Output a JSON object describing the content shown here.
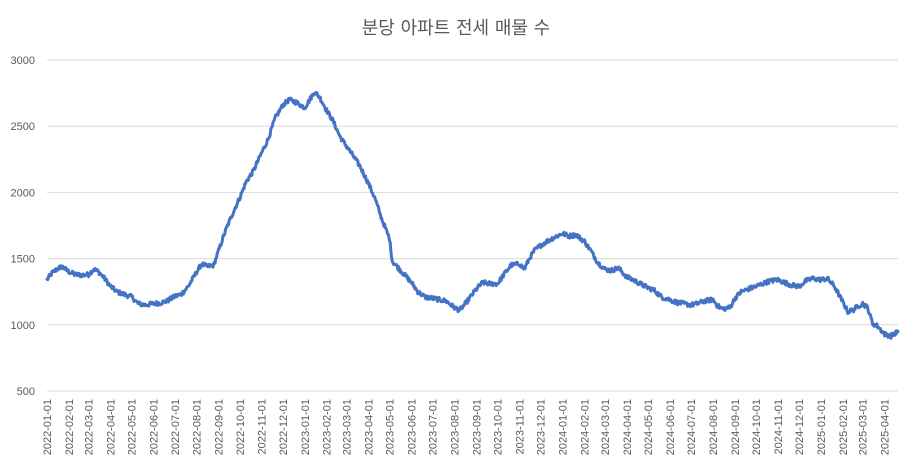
{
  "chart_data": {
    "type": "line",
    "title": "분당 아파트 전세 매물 수",
    "xlabel": "",
    "ylabel": "",
    "ylim": [
      500,
      3000
    ],
    "yticks": [
      500,
      1000,
      1500,
      2000,
      2500,
      3000
    ],
    "grid": true,
    "legend": "none",
    "line_color": "#4472c4",
    "x_tick_labels": [
      "2022-01-01",
      "2022-02-01",
      "2022-03-01",
      "2022-04-01",
      "2022-05-01",
      "2022-06-01",
      "2022-07-01",
      "2022-08-01",
      "2022-09-01",
      "2022-10-01",
      "2022-11-01",
      "2022-12-01",
      "2023-01-01",
      "2023-02-01",
      "2023-03-01",
      "2023-04-01",
      "2023-05-01",
      "2023-06-01",
      "2023-07-01",
      "2023-08-01",
      "2023-09-01",
      "2023-10-01",
      "2023-11-01",
      "2023-12-01",
      "2024-01-01",
      "2024-02-01",
      "2024-03-01",
      "2024-04-01",
      "2024-05-01",
      "2024-06-01",
      "2024-07-01",
      "2024-08-01",
      "2024-09-01",
      "2024-10-01",
      "2024-11-01",
      "2024-12-01",
      "2025-01-01",
      "2025-02-01",
      "2025-03-01",
      "2025-04-01"
    ],
    "x_range": [
      "2022-01-01",
      "2025-04-20"
    ],
    "series": [
      {
        "name": "",
        "points": [
          [
            "2022-01-01",
            1340
          ],
          [
            "2022-01-08",
            1390
          ],
          [
            "2022-01-15",
            1420
          ],
          [
            "2022-01-22",
            1440
          ],
          [
            "2022-02-01",
            1400
          ],
          [
            "2022-02-10",
            1380
          ],
          [
            "2022-02-20",
            1375
          ],
          [
            "2022-03-01",
            1380
          ],
          [
            "2022-03-08",
            1420
          ],
          [
            "2022-03-15",
            1400
          ],
          [
            "2022-03-22",
            1360
          ],
          [
            "2022-04-01",
            1290
          ],
          [
            "2022-04-10",
            1250
          ],
          [
            "2022-04-20",
            1230
          ],
          [
            "2022-05-01",
            1210
          ],
          [
            "2022-05-10",
            1160
          ],
          [
            "2022-05-20",
            1150
          ],
          [
            "2022-06-01",
            1160
          ],
          [
            "2022-06-10",
            1165
          ],
          [
            "2022-06-20",
            1180
          ],
          [
            "2022-07-01",
            1215
          ],
          [
            "2022-07-10",
            1230
          ],
          [
            "2022-07-20",
            1290
          ],
          [
            "2022-08-01",
            1400
          ],
          [
            "2022-08-08",
            1460
          ],
          [
            "2022-08-15",
            1440
          ],
          [
            "2022-08-25",
            1450
          ],
          [
            "2022-09-01",
            1560
          ],
          [
            "2022-09-10",
            1700
          ],
          [
            "2022-09-20",
            1830
          ],
          [
            "2022-10-01",
            1960
          ],
          [
            "2022-10-10",
            2080
          ],
          [
            "2022-10-20",
            2160
          ],
          [
            "2022-11-01",
            2300
          ],
          [
            "2022-11-10",
            2400
          ],
          [
            "2022-11-20",
            2560
          ],
          [
            "2022-12-01",
            2660
          ],
          [
            "2022-12-10",
            2700
          ],
          [
            "2022-12-20",
            2680
          ],
          [
            "2023-01-01",
            2640
          ],
          [
            "2023-01-08",
            2700
          ],
          [
            "2023-01-15",
            2760
          ],
          [
            "2023-01-22",
            2720
          ],
          [
            "2023-02-01",
            2620
          ],
          [
            "2023-02-10",
            2540
          ],
          [
            "2023-02-20",
            2420
          ],
          [
            "2023-03-01",
            2350
          ],
          [
            "2023-03-10",
            2280
          ],
          [
            "2023-03-20",
            2200
          ],
          [
            "2023-04-01",
            2070
          ],
          [
            "2023-04-10",
            1960
          ],
          [
            "2023-04-20",
            1800
          ],
          [
            "2023-05-01",
            1650
          ],
          [
            "2023-05-05",
            1480
          ],
          [
            "2023-05-15",
            1420
          ],
          [
            "2023-06-01",
            1320
          ],
          [
            "2023-06-10",
            1250
          ],
          [
            "2023-06-20",
            1210
          ],
          [
            "2023-07-01",
            1200
          ],
          [
            "2023-07-10",
            1190
          ],
          [
            "2023-07-20",
            1180
          ],
          [
            "2023-08-01",
            1130
          ],
          [
            "2023-08-08",
            1110
          ],
          [
            "2023-08-15",
            1150
          ],
          [
            "2023-09-01",
            1270
          ],
          [
            "2023-09-10",
            1320
          ],
          [
            "2023-09-20",
            1310
          ],
          [
            "2023-10-01",
            1310
          ],
          [
            "2023-10-10",
            1380
          ],
          [
            "2023-10-20",
            1450
          ],
          [
            "2023-11-01",
            1460
          ],
          [
            "2023-11-08",
            1420
          ],
          [
            "2023-11-15",
            1500
          ],
          [
            "2023-11-22",
            1560
          ],
          [
            "2023-12-01",
            1600
          ],
          [
            "2023-12-10",
            1630
          ],
          [
            "2023-12-20",
            1660
          ],
          [
            "2024-01-01",
            1690
          ],
          [
            "2024-01-10",
            1670
          ],
          [
            "2024-01-20",
            1680
          ],
          [
            "2024-02-01",
            1630
          ],
          [
            "2024-02-10",
            1560
          ],
          [
            "2024-02-20",
            1470
          ],
          [
            "2024-03-01",
            1420
          ],
          [
            "2024-03-10",
            1410
          ],
          [
            "2024-03-20",
            1430
          ],
          [
            "2024-04-01",
            1360
          ],
          [
            "2024-04-10",
            1340
          ],
          [
            "2024-04-20",
            1310
          ],
          [
            "2024-05-01",
            1280
          ],
          [
            "2024-05-10",
            1260
          ],
          [
            "2024-05-20",
            1210
          ],
          [
            "2024-06-01",
            1190
          ],
          [
            "2024-06-10",
            1170
          ],
          [
            "2024-06-20",
            1160
          ],
          [
            "2024-07-01",
            1150
          ],
          [
            "2024-07-10",
            1160
          ],
          [
            "2024-07-20",
            1180
          ],
          [
            "2024-08-01",
            1190
          ],
          [
            "2024-08-08",
            1140
          ],
          [
            "2024-08-15",
            1120
          ],
          [
            "2024-08-25",
            1130
          ],
          [
            "2024-09-01",
            1200
          ],
          [
            "2024-09-10",
            1250
          ],
          [
            "2024-09-20",
            1270
          ],
          [
            "2024-10-01",
            1290
          ],
          [
            "2024-10-10",
            1310
          ],
          [
            "2024-10-20",
            1330
          ],
          [
            "2024-11-01",
            1340
          ],
          [
            "2024-11-10",
            1320
          ],
          [
            "2024-11-20",
            1300
          ],
          [
            "2024-12-01",
            1290
          ],
          [
            "2024-12-10",
            1330
          ],
          [
            "2024-12-20",
            1350
          ],
          [
            "2025-01-01",
            1340
          ],
          [
            "2025-01-10",
            1350
          ],
          [
            "2025-01-20",
            1290
          ],
          [
            "2025-02-01",
            1170
          ],
          [
            "2025-02-08",
            1100
          ],
          [
            "2025-02-15",
            1110
          ],
          [
            "2025-02-22",
            1140
          ],
          [
            "2025-03-01",
            1160
          ],
          [
            "2025-03-08",
            1130
          ],
          [
            "2025-03-15",
            1010
          ],
          [
            "2025-03-22",
            990
          ],
          [
            "2025-04-01",
            930
          ],
          [
            "2025-04-10",
            915
          ],
          [
            "2025-04-20",
            950
          ]
        ]
      }
    ]
  }
}
